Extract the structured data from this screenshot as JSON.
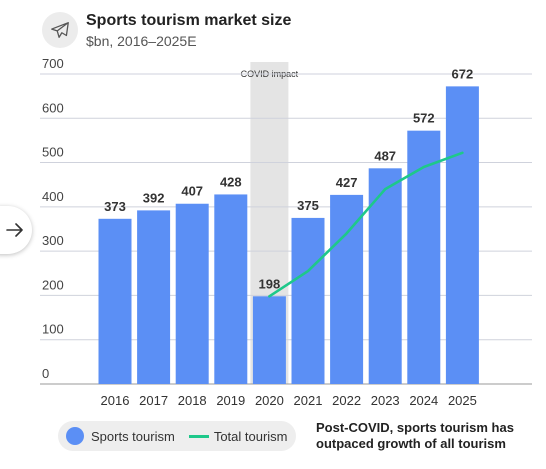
{
  "header": {
    "title": "Sports tourism market size",
    "subtitle": "$bn, 2016–2025E",
    "icon": "airplane-icon"
  },
  "nav": {
    "arrow_icon": "arrow-right-icon"
  },
  "annotation": {
    "line1": "Post-COVID, sports tourism has",
    "line2": "outpaced growth of all tourism"
  },
  "legend": {
    "bar_label": "Sports tourism",
    "line_label": "Total tourism"
  },
  "colors": {
    "bar": "#5b8ff5",
    "line": "#1ec88a",
    "covid_band": "#e4e4e4",
    "axis_text": "#444444",
    "grid": "#cfd2dc"
  },
  "chart_data": {
    "type": "bar",
    "categories": [
      "2016",
      "2017",
      "2018",
      "2019",
      "2020",
      "2021",
      "2022",
      "2023",
      "2024",
      "2025"
    ],
    "series": [
      {
        "name": "Sports tourism",
        "type": "bar",
        "values": [
          373,
          392,
          407,
          428,
          198,
          375,
          427,
          487,
          572,
          672
        ]
      },
      {
        "name": "Total tourism",
        "type": "line",
        "x": [
          "2020",
          "2021",
          "2022",
          "2023",
          "2024",
          "2025"
        ],
        "values": [
          198,
          255,
          340,
          440,
          490,
          522
        ]
      }
    ],
    "yticks": [
      0,
      100,
      200,
      300,
      400,
      500,
      600,
      700
    ],
    "ylim": [
      0,
      720
    ],
    "title": "Sports tourism market size",
    "subtitle": "$bn, 2016–2025E",
    "grid": true,
    "legend": "bottom-left",
    "annotations": [
      {
        "label": "COVID impact",
        "category": "2020"
      }
    ]
  }
}
